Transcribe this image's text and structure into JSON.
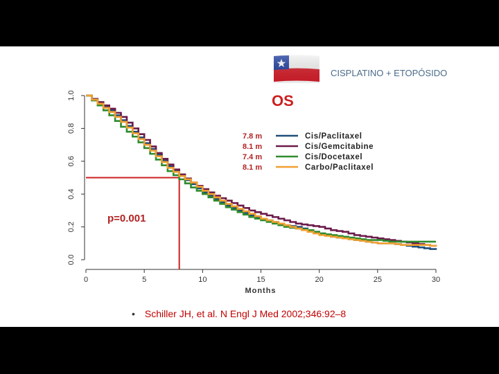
{
  "header": {
    "label": "CISPLATINO + ETOPÓSIDO"
  },
  "citation": {
    "bullet": "•",
    "text": "Schiller JH, et al. N Engl J Med 2002;346:92–8"
  },
  "colors": {
    "accent_red": "#cc1f1f",
    "flag_blue": "#1f3d9e",
    "flag_red": "#d71e2a"
  },
  "chart_data": {
    "type": "line",
    "title": "OS",
    "xlabel": "Months",
    "ylabel": "",
    "xlim": [
      0,
      30
    ],
    "ylim": [
      0,
      1
    ],
    "x_ticks": [
      "0",
      "5",
      "10",
      "15",
      "20",
      "25",
      "30"
    ],
    "y_ticks": [
      "0.0",
      "0.2",
      "0.4",
      "0.6",
      "0.8",
      "1.0"
    ],
    "legend_position": "top-right",
    "annotation": "p=0.001",
    "median_guide": {
      "x": 8,
      "y": 0.5
    },
    "series": [
      {
        "name": "Cis/Paclitaxel",
        "median": "7.8 m",
        "color": "#1f4e79",
        "x": [
          0,
          1,
          2,
          3,
          4,
          5,
          6,
          7,
          8,
          9,
          10,
          11,
          12,
          13,
          14,
          15,
          16,
          17,
          18,
          19,
          20,
          21,
          22,
          23,
          24,
          25,
          26,
          27,
          28,
          29,
          30
        ],
        "y": [
          1.0,
          0.95,
          0.91,
          0.85,
          0.78,
          0.71,
          0.64,
          0.57,
          0.51,
          0.46,
          0.41,
          0.37,
          0.33,
          0.3,
          0.27,
          0.25,
          0.23,
          0.21,
          0.2,
          0.18,
          0.16,
          0.14,
          0.13,
          0.12,
          0.11,
          0.1,
          0.1,
          0.09,
          0.08,
          0.07,
          0.06
        ]
      },
      {
        "name": "Cis/Gemcitabine",
        "median": "8.1 m",
        "color": "#6b1a4a",
        "x": [
          0,
          1,
          2,
          3,
          4,
          5,
          6,
          7,
          8,
          9,
          10,
          11,
          12,
          13,
          14,
          15,
          16,
          17,
          18,
          19,
          20,
          21,
          22,
          23,
          24,
          25,
          26,
          27,
          28,
          29,
          30
        ],
        "y": [
          1.0,
          0.96,
          0.92,
          0.87,
          0.8,
          0.73,
          0.65,
          0.58,
          0.52,
          0.47,
          0.43,
          0.39,
          0.36,
          0.33,
          0.3,
          0.28,
          0.26,
          0.24,
          0.22,
          0.21,
          0.2,
          0.18,
          0.17,
          0.15,
          0.14,
          0.13,
          0.12,
          0.11,
          0.1,
          0.09,
          0.08
        ]
      },
      {
        "name": "Cis/Docetaxel",
        "median": "7.4 m",
        "color": "#2e8b2e",
        "x": [
          0,
          1,
          2,
          3,
          4,
          5,
          6,
          7,
          8,
          9,
          10,
          11,
          12,
          13,
          14,
          15,
          16,
          17,
          18,
          19,
          20,
          21,
          22,
          23,
          24,
          25,
          26,
          27,
          28,
          29,
          30
        ],
        "y": [
          1.0,
          0.94,
          0.88,
          0.81,
          0.75,
          0.68,
          0.61,
          0.54,
          0.49,
          0.44,
          0.4,
          0.36,
          0.32,
          0.29,
          0.26,
          0.24,
          0.22,
          0.2,
          0.19,
          0.18,
          0.16,
          0.15,
          0.14,
          0.13,
          0.12,
          0.12,
          0.11,
          0.11,
          0.11,
          0.11,
          0.11
        ]
      },
      {
        "name": "Carbo/Paclitaxel",
        "median": "8.1 m",
        "color": "#f0a030",
        "x": [
          0,
          1,
          2,
          3,
          4,
          5,
          6,
          7,
          8,
          9,
          10,
          11,
          12,
          13,
          14,
          15,
          16,
          17,
          18,
          19,
          20,
          21,
          22,
          23,
          24,
          25,
          26,
          27,
          28,
          29,
          30
        ],
        "y": [
          1.0,
          0.95,
          0.9,
          0.84,
          0.77,
          0.7,
          0.63,
          0.56,
          0.51,
          0.47,
          0.42,
          0.38,
          0.34,
          0.31,
          0.28,
          0.25,
          0.23,
          0.21,
          0.19,
          0.17,
          0.15,
          0.14,
          0.13,
          0.12,
          0.11,
          0.1,
          0.1,
          0.09,
          0.09,
          0.09,
          0.08
        ]
      }
    ]
  }
}
